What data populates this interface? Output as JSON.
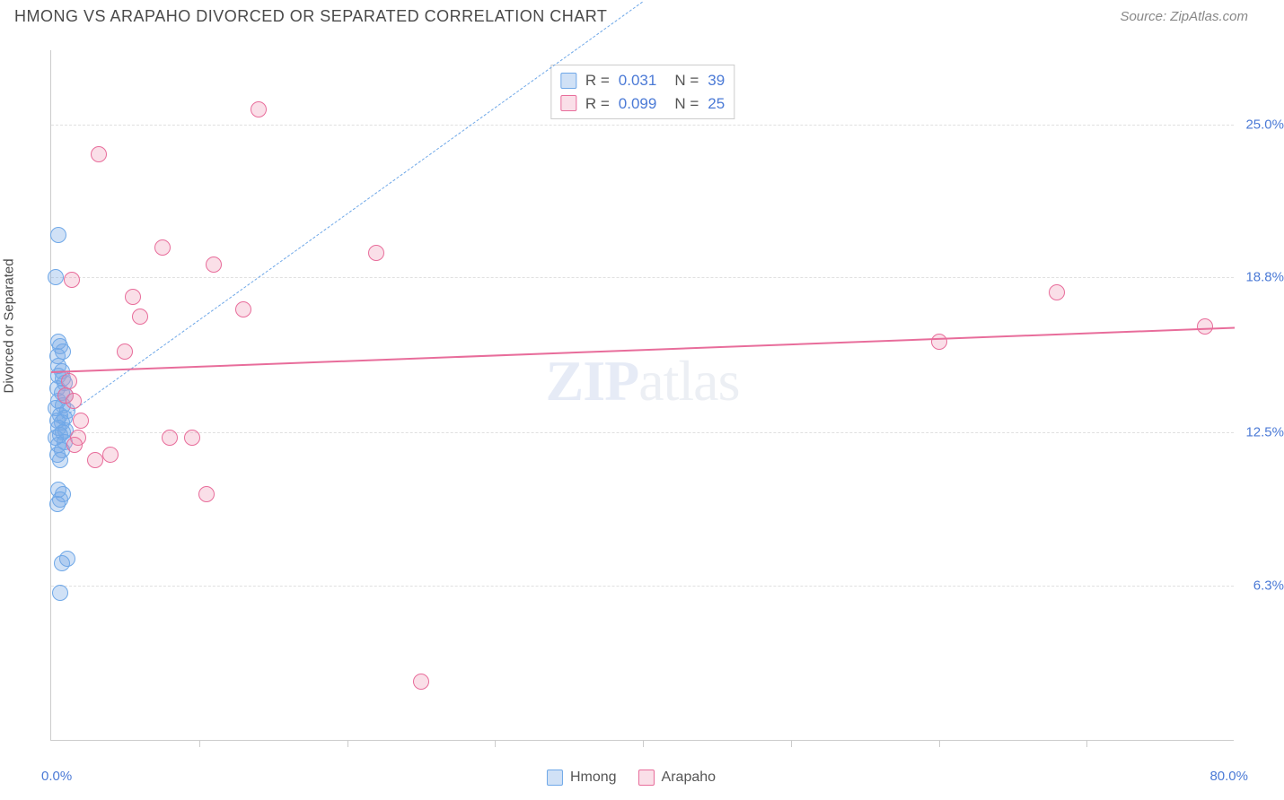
{
  "title": "HMONG VS ARAPAHO DIVORCED OR SEPARATED CORRELATION CHART",
  "source": "Source: ZipAtlas.com",
  "watermark_zip": "ZIP",
  "watermark_atlas": "atlas",
  "chart": {
    "type": "scatter",
    "background_color": "#ffffff",
    "grid_color": "#e0e0e0",
    "axis_color": "#cccccc",
    "label_fontsize": 15,
    "title_fontsize": 18,
    "xlim": [
      0,
      80
    ],
    "ylim": [
      0,
      28
    ],
    "x_axis": {
      "origin_label": "0.0%",
      "end_label": "80.0%",
      "tick_positions": [
        10,
        20,
        30,
        40,
        50,
        60,
        70
      ]
    },
    "y_axis": {
      "label": "Divorced or Separated",
      "ticks": [
        {
          "value": 6.3,
          "label": "6.3%"
        },
        {
          "value": 12.5,
          "label": "12.5%"
        },
        {
          "value": 18.8,
          "label": "18.8%"
        },
        {
          "value": 25.0,
          "label": "25.0%"
        }
      ]
    },
    "series": [
      {
        "name": "Hmong",
        "color_fill": "rgba(120,170,230,0.35)",
        "color_border": "#6fa8e8",
        "marker_size": 18,
        "stats": {
          "r_label": "R =",
          "r_value": "0.031",
          "n_label": "N =",
          "n_value": "39"
        },
        "trend": {
          "color": "#6fa8e8",
          "style": "dashed",
          "x1": 0.5,
          "y1": 13.0,
          "x2": 40,
          "y2": 30
        },
        "points": [
          [
            0.5,
            20.5
          ],
          [
            0.3,
            18.8
          ],
          [
            0.5,
            16.2
          ],
          [
            0.6,
            16.0
          ],
          [
            0.8,
            15.8
          ],
          [
            0.4,
            15.6
          ],
          [
            0.7,
            15.0
          ],
          [
            0.5,
            14.8
          ],
          [
            0.9,
            14.5
          ],
          [
            0.4,
            14.3
          ],
          [
            0.7,
            14.1
          ],
          [
            1.0,
            14.0
          ],
          [
            0.5,
            13.8
          ],
          [
            0.8,
            13.6
          ],
          [
            0.3,
            13.5
          ],
          [
            1.1,
            13.4
          ],
          [
            0.6,
            13.2
          ],
          [
            0.9,
            13.1
          ],
          [
            0.4,
            13.0
          ],
          [
            0.7,
            12.9
          ],
          [
            0.5,
            12.7
          ],
          [
            1.0,
            12.6
          ],
          [
            0.8,
            12.5
          ],
          [
            0.6,
            12.4
          ],
          [
            0.3,
            12.3
          ],
          [
            0.9,
            12.1
          ],
          [
            0.5,
            12.0
          ],
          [
            0.7,
            11.8
          ],
          [
            0.4,
            11.6
          ],
          [
            0.6,
            11.4
          ],
          [
            0.8,
            10.0
          ],
          [
            0.5,
            10.2
          ],
          [
            0.6,
            9.8
          ],
          [
            0.4,
            9.6
          ],
          [
            1.1,
            7.4
          ],
          [
            0.7,
            7.2
          ],
          [
            0.6,
            6.0
          ],
          [
            0.8,
            14.7
          ],
          [
            0.5,
            15.2
          ]
        ]
      },
      {
        "name": "Arapaho",
        "color_fill": "rgba(240,150,180,0.30)",
        "color_border": "#e86d9b",
        "marker_size": 18,
        "stats": {
          "r_label": "R =",
          "r_value": "0.099",
          "n_label": "N =",
          "n_value": "25"
        },
        "trend": {
          "color": "#e86d9b",
          "style": "solid",
          "x1": 0,
          "y1": 15.0,
          "x2": 80,
          "y2": 16.8
        },
        "points": [
          [
            3.2,
            23.8
          ],
          [
            14.0,
            25.6
          ],
          [
            1.0,
            14.0
          ],
          [
            1.5,
            13.8
          ],
          [
            1.2,
            14.6
          ],
          [
            1.8,
            12.3
          ],
          [
            2.0,
            13.0
          ],
          [
            1.6,
            12.0
          ],
          [
            3.0,
            11.4
          ],
          [
            4.0,
            11.6
          ],
          [
            6.0,
            17.2
          ],
          [
            7.5,
            20.0
          ],
          [
            5.5,
            18.0
          ],
          [
            8.0,
            12.3
          ],
          [
            9.5,
            12.3
          ],
          [
            10.5,
            10.0
          ],
          [
            13.0,
            17.5
          ],
          [
            11.0,
            19.3
          ],
          [
            22.0,
            19.8
          ],
          [
            25.0,
            2.4
          ],
          [
            60.0,
            16.2
          ],
          [
            68.0,
            18.2
          ],
          [
            78.0,
            16.8
          ],
          [
            1.4,
            18.7
          ],
          [
            5.0,
            15.8
          ]
        ]
      }
    ]
  },
  "legend_label_1": "Hmong",
  "legend_label_2": "Arapaho"
}
